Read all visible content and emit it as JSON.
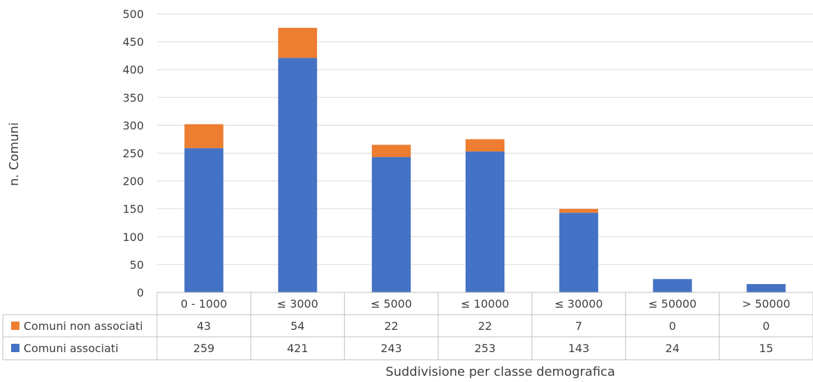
{
  "chart_data": {
    "type": "bar",
    "stacked": true,
    "categories": [
      "0 - 1000",
      "≤ 3000",
      "≤ 5000",
      "≤ 10000",
      "≤ 30000",
      "≤ 50000",
      "> 50000"
    ],
    "series": [
      {
        "name": "Comuni associati",
        "values": [
          259,
          421,
          243,
          253,
          143,
          24,
          15
        ],
        "color": "#4472C4"
      },
      {
        "name": "Comuni non associati",
        "values": [
          43,
          54,
          22,
          22,
          7,
          0,
          0
        ],
        "color": "#ED7D31"
      }
    ],
    "ylim": [
      0,
      500
    ],
    "yticks": [
      0,
      50,
      100,
      150,
      200,
      250,
      300,
      350,
      400,
      450,
      500
    ],
    "ylabel": "n. Comuni",
    "xlabel": "Suddivisione per classe demografica",
    "grid": true,
    "legend": "data-table",
    "data_table": true
  }
}
